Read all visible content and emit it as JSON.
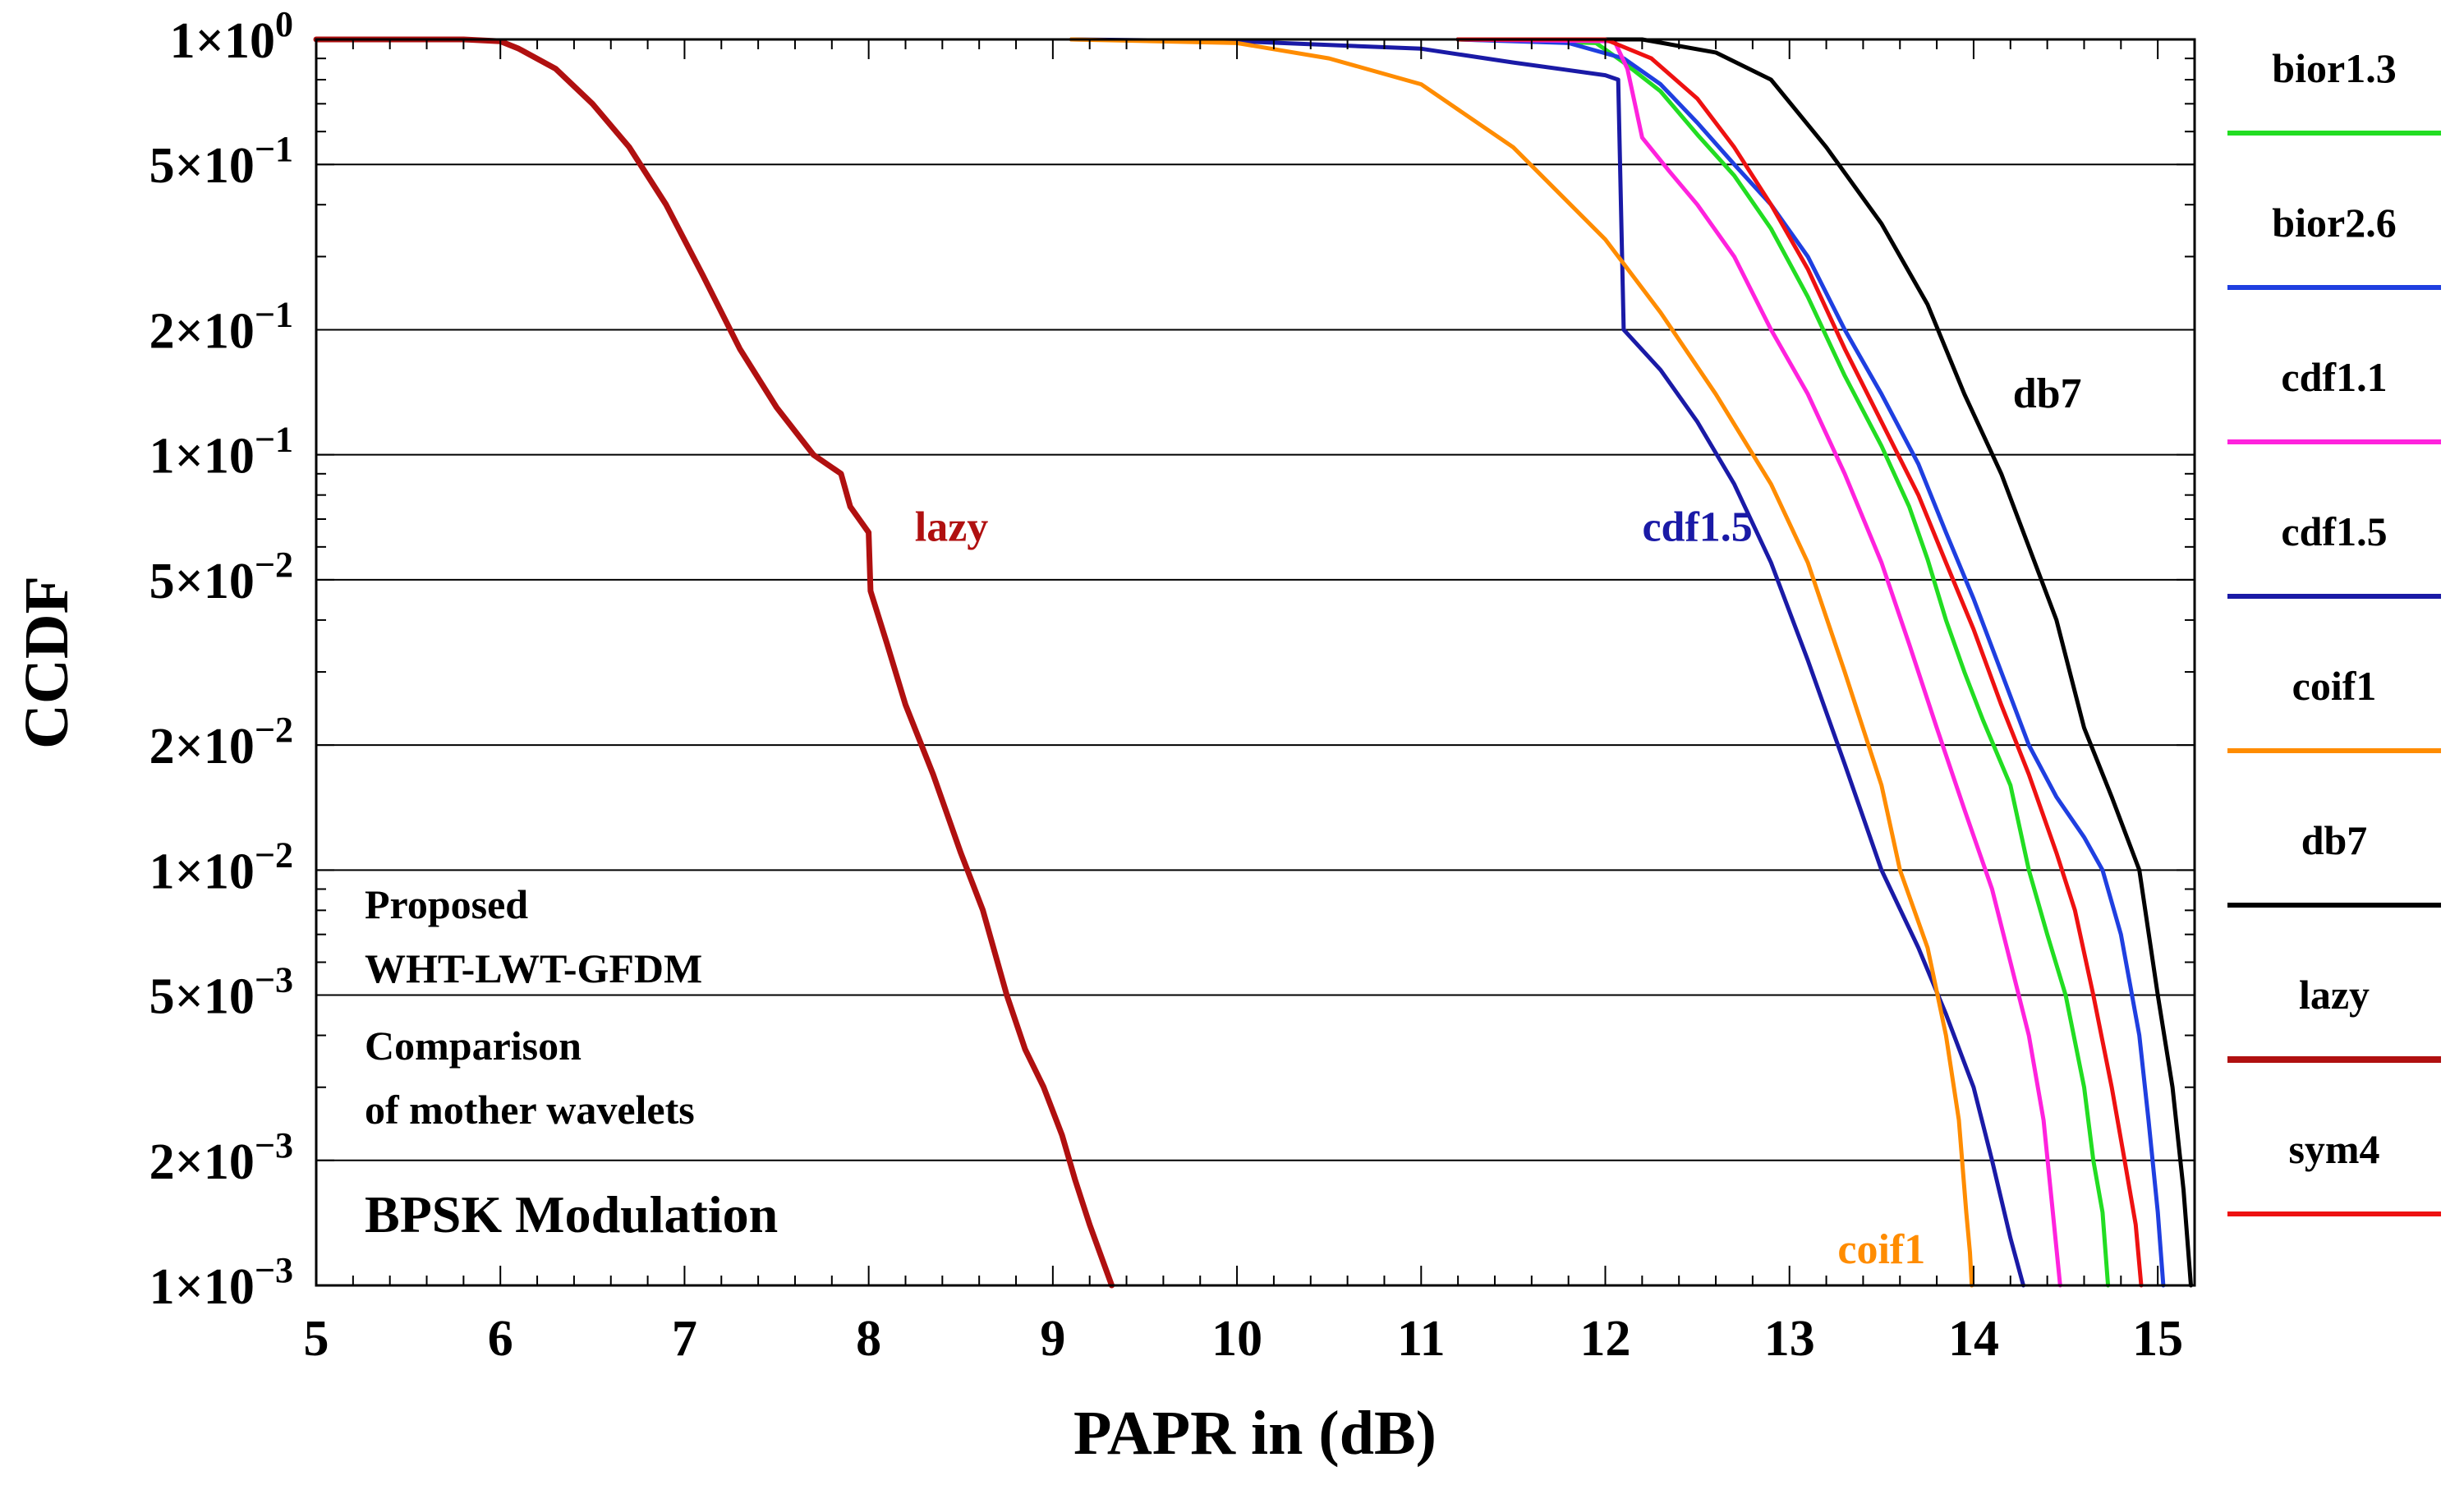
{
  "chart_data": {
    "type": "line",
    "title": "",
    "xlabel": "PAPR in (dB)",
    "ylabel": "CCDF",
    "xlim": [
      5,
      15.2
    ],
    "ylim": [
      0.001,
      1
    ],
    "yscale": "log",
    "grid": "horizontal",
    "x_ticks": [
      5,
      6,
      7,
      8,
      9,
      10,
      11,
      12,
      13,
      14,
      15
    ],
    "x_tick_labels": [
      "5",
      "6",
      "7",
      "8",
      "9",
      "10",
      "11",
      "12",
      "13",
      "14",
      "15"
    ],
    "y_ticks": [
      {
        "value": 1,
        "mantissa": "1×10",
        "exp": "0"
      },
      {
        "value": 0.5,
        "mantissa": "5×10",
        "exp": "−1"
      },
      {
        "value": 0.2,
        "mantissa": "2×10",
        "exp": "−1"
      },
      {
        "value": 0.1,
        "mantissa": "1×10",
        "exp": "−1"
      },
      {
        "value": 0.05,
        "mantissa": "5×10",
        "exp": "−2"
      },
      {
        "value": 0.02,
        "mantissa": "2×10",
        "exp": "−2"
      },
      {
        "value": 0.01,
        "mantissa": "1×10",
        "exp": "−2"
      },
      {
        "value": 0.005,
        "mantissa": "5×10",
        "exp": "−3"
      },
      {
        "value": 0.002,
        "mantissa": "2×10",
        "exp": "−3"
      },
      {
        "value": 0.001,
        "mantissa": "1×10",
        "exp": "−3"
      }
    ],
    "annotations": {
      "proposed": "Proposed",
      "scheme": "WHT-LWT-GFDM",
      "comparison": "Comparison",
      "comparison2": "of mother wavelets",
      "modulation": "BPSK Modulation"
    },
    "curve_labels": [
      {
        "text": "lazy",
        "series": "lazy",
        "x": 8.45,
        "y": 0.062,
        "color": "#b01010"
      },
      {
        "text": "cdf1.5",
        "series": "cdf1.5",
        "x": 12.5,
        "y": 0.062,
        "color": "#1a1aa6"
      },
      {
        "text": "db7",
        "series": "db7",
        "x": 14.4,
        "y": 0.13,
        "color": "#000000"
      },
      {
        "text": "coif1",
        "series": "coif1",
        "x": 13.5,
        "y": 0.00113,
        "color": "#ff8c00"
      }
    ],
    "legend_position": "right",
    "series": [
      {
        "name": "bior1.3",
        "color": "#22dd22",
        "width": 5,
        "x": [
          11.2,
          11.95,
          12.1,
          12.3,
          12.5,
          12.7,
          12.9,
          13.1,
          13.3,
          13.5,
          13.65,
          13.75,
          13.85,
          13.95,
          14.05,
          14.2,
          14.3,
          14.4,
          14.5,
          14.6,
          14.65,
          14.7,
          14.73
        ],
        "y": [
          1.0,
          0.98,
          0.88,
          0.75,
          0.59,
          0.47,
          0.35,
          0.24,
          0.155,
          0.105,
          0.075,
          0.056,
          0.04,
          0.03,
          0.023,
          0.016,
          0.01,
          0.007,
          0.005,
          0.003,
          0.002,
          0.0015,
          0.001
        ]
      },
      {
        "name": "bior2.6",
        "color": "#1f3fe0",
        "width": 5,
        "x": [
          11.2,
          11.8,
          12.1,
          12.3,
          12.5,
          12.7,
          12.9,
          13.1,
          13.3,
          13.5,
          13.7,
          13.85,
          14.0,
          14.15,
          14.3,
          14.45,
          14.6,
          14.7,
          14.8,
          14.9,
          14.95,
          15.0,
          15.03
        ],
        "y": [
          1.0,
          0.98,
          0.9,
          0.78,
          0.63,
          0.5,
          0.4,
          0.3,
          0.2,
          0.14,
          0.095,
          0.065,
          0.045,
          0.03,
          0.02,
          0.015,
          0.012,
          0.01,
          0.007,
          0.004,
          0.0025,
          0.0015,
          0.001
        ]
      },
      {
        "name": "cdf1.1",
        "color": "#ff22dd",
        "width": 5,
        "x": [
          11.2,
          12.05,
          12.12,
          12.2,
          12.35,
          12.5,
          12.7,
          12.9,
          13.1,
          13.3,
          13.5,
          13.65,
          13.8,
          13.95,
          14.1,
          14.2,
          14.3,
          14.38,
          14.43,
          14.47
        ],
        "y": [
          1.0,
          0.99,
          0.85,
          0.58,
          0.48,
          0.4,
          0.3,
          0.2,
          0.14,
          0.09,
          0.055,
          0.035,
          0.022,
          0.014,
          0.009,
          0.006,
          0.004,
          0.0025,
          0.0015,
          0.001
        ]
      },
      {
        "name": "cdf1.5",
        "color": "#1a1aa6",
        "width": 5,
        "x": [
          9.1,
          10.0,
          11.0,
          11.5,
          12.0,
          12.07,
          12.1,
          12.3,
          12.5,
          12.7,
          12.9,
          13.1,
          13.3,
          13.5,
          13.7,
          13.85,
          14.0,
          14.1,
          14.2,
          14.27
        ],
        "y": [
          1.0,
          0.99,
          0.95,
          0.88,
          0.82,
          0.8,
          0.2,
          0.16,
          0.12,
          0.085,
          0.055,
          0.032,
          0.018,
          0.01,
          0.0065,
          0.0045,
          0.003,
          0.002,
          0.0013,
          0.001
        ]
      },
      {
        "name": "coif1",
        "color": "#ff8c00",
        "width": 5,
        "x": [
          9.1,
          10.0,
          10.5,
          11.0,
          11.5,
          12.0,
          12.3,
          12.6,
          12.9,
          13.1,
          13.3,
          13.5,
          13.6,
          13.75,
          13.85,
          13.92,
          13.96,
          13.98,
          13.99
        ],
        "y": [
          1.0,
          0.98,
          0.9,
          0.78,
          0.55,
          0.33,
          0.22,
          0.14,
          0.085,
          0.055,
          0.03,
          0.016,
          0.01,
          0.0065,
          0.004,
          0.0025,
          0.0015,
          0.0012,
          0.001
        ]
      },
      {
        "name": "db7",
        "color": "#000000",
        "width": 5,
        "x": [
          11.2,
          12.2,
          12.6,
          12.9,
          13.2,
          13.5,
          13.75,
          13.95,
          14.15,
          14.3,
          14.45,
          14.6,
          14.75,
          14.9,
          15.0,
          15.08,
          15.14,
          15.18
        ],
        "y": [
          1.0,
          1.0,
          0.93,
          0.8,
          0.55,
          0.36,
          0.23,
          0.14,
          0.09,
          0.06,
          0.04,
          0.022,
          0.015,
          0.01,
          0.005,
          0.003,
          0.0017,
          0.001
        ]
      },
      {
        "name": "lazy",
        "color": "#b01010",
        "width": 7,
        "x": [
          5.0,
          5.8,
          6.0,
          6.1,
          6.3,
          6.5,
          6.7,
          6.9,
          7.1,
          7.3,
          7.5,
          7.7,
          7.85,
          7.9,
          8.0,
          8.01,
          8.1,
          8.2,
          8.35,
          8.5,
          8.62,
          8.75,
          8.85,
          8.95,
          9.05,
          9.12,
          9.2,
          9.32
        ],
        "y": [
          1.0,
          1.0,
          0.99,
          0.95,
          0.85,
          0.7,
          0.55,
          0.4,
          0.27,
          0.18,
          0.13,
          0.1,
          0.09,
          0.075,
          0.065,
          0.047,
          0.035,
          0.025,
          0.017,
          0.011,
          0.008,
          0.005,
          0.0037,
          0.003,
          0.0023,
          0.0018,
          0.0014,
          0.001
        ]
      },
      {
        "name": "sym4",
        "color": "#ee1111",
        "width": 5,
        "x": [
          11.2,
          12.0,
          12.25,
          12.5,
          12.7,
          12.9,
          13.1,
          13.3,
          13.5,
          13.7,
          13.85,
          14.0,
          14.15,
          14.3,
          14.45,
          14.55,
          14.65,
          14.75,
          14.82,
          14.88,
          14.91
        ],
        "y": [
          1.0,
          1.0,
          0.9,
          0.72,
          0.55,
          0.4,
          0.28,
          0.18,
          0.12,
          0.08,
          0.055,
          0.038,
          0.025,
          0.017,
          0.011,
          0.008,
          0.005,
          0.003,
          0.002,
          0.0014,
          0.001
        ]
      }
    ]
  }
}
